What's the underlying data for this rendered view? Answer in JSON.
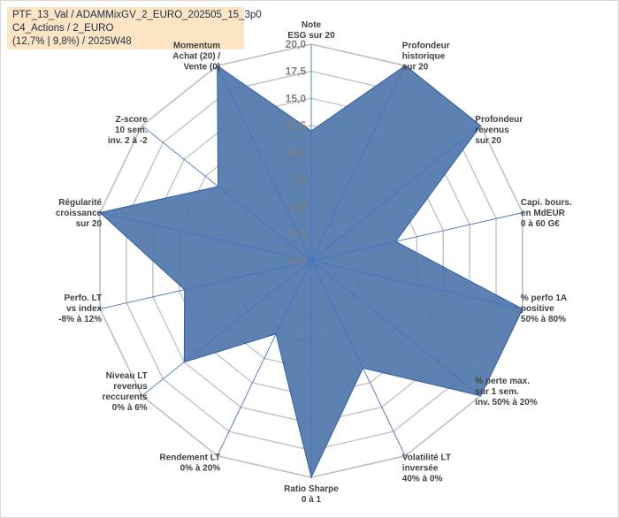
{
  "header": {
    "line1": "PTF_13_Val / ADAMMixGV_2_EURO_202505_15_3p0",
    "line2": "C4_Actions / 2_EURO",
    "line3": "(12,7% | 9,8%) / 2025W48"
  },
  "chart_data": {
    "type": "radar",
    "rmin": 0,
    "rmax": 20,
    "tick_step": 2.5,
    "scale_labels": [
      "0,0",
      "2,5",
      "5,0",
      "7,5",
      "10,0",
      "12,5",
      "15,0",
      "17,5",
      "20,0"
    ],
    "axes": [
      {
        "label": [
          "Note",
          "ESG sur 20"
        ],
        "value": 12
      },
      {
        "label": [
          "Profondeur",
          "historique",
          "sur 20"
        ],
        "value": 20
      },
      {
        "label": [
          "Profondeur",
          "revenus",
          "sur 20"
        ],
        "value": 20
      },
      {
        "label": [
          "Capi. bours.",
          "en MdEUR",
          "0 à 60 G€"
        ],
        "value": 8
      },
      {
        "label": [
          "% perfo 1A",
          "positive",
          "50% à 80%"
        ],
        "value": 20
      },
      {
        "label": [
          "% perte max.",
          "sur 1 sem.",
          "inv. 50% à 20%"
        ],
        "value": 20
      },
      {
        "label": [
          "Volatilité LT",
          "inversée",
          "40% à 0%"
        ],
        "value": 11
      },
      {
        "label": [
          "Ratio Sharpe",
          "0 à 1"
        ],
        "value": 20
      },
      {
        "label": [
          "Rendement LT",
          "0% à 20%"
        ],
        "value": 7.5
      },
      {
        "label": [
          "Niveau LT",
          "revenus",
          "reccurents",
          "0% à 6%"
        ],
        "value": 15
      },
      {
        "label": [
          "Perfo. LT",
          "vs index",
          "-8% à 12%"
        ],
        "value": 12
      },
      {
        "label": [
          "Régularité",
          "croissance",
          "sur 20"
        ],
        "value": 20
      },
      {
        "label": [
          "Z-score",
          "10 sem.",
          "inv. 2 à -2"
        ],
        "value": 11
      },
      {
        "label": [
          "Momentum",
          "Achat (20) /",
          "Vente (0)"
        ],
        "value": 20
      }
    ],
    "colors": {
      "fill": "#4f77aa",
      "stroke": "#2e5da8",
      "spoke": "#4472c4",
      "grid": "#bfbfbf",
      "header_bg": "#fbe5c4"
    }
  }
}
